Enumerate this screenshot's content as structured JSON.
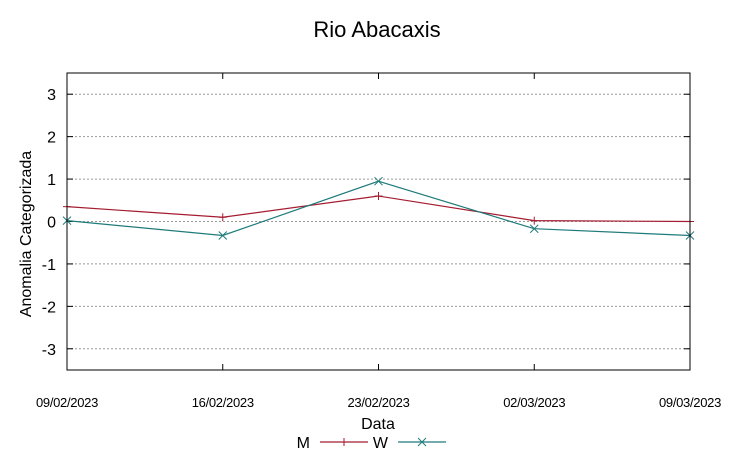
{
  "chart_data": {
    "type": "line",
    "title": "Rio Abacaxis",
    "xlabel": "Data",
    "ylabel": "Anomalia Categorizada",
    "categories": [
      "09/02/2023",
      "16/02/2023",
      "23/02/2023",
      "02/03/2023",
      "09/03/2023"
    ],
    "ylim": [
      -3.5,
      3.5
    ],
    "yticks": [
      3,
      2,
      1,
      0,
      -1,
      -2,
      -3
    ],
    "ytick_labels": [
      "3",
      "2",
      "1",
      "0",
      "-1",
      "-2",
      "-3"
    ],
    "grid": true,
    "legend_position": "bottom",
    "series": [
      {
        "name": "M",
        "color": "#a51c30",
        "marker": "+",
        "values": [
          0.35,
          0.1,
          0.6,
          0.02,
          0.0
        ]
      },
      {
        "name": "W",
        "color": "#1f7a7a",
        "marker": "x",
        "values": [
          0.02,
          -0.33,
          0.95,
          -0.17,
          -0.33
        ]
      }
    ]
  }
}
